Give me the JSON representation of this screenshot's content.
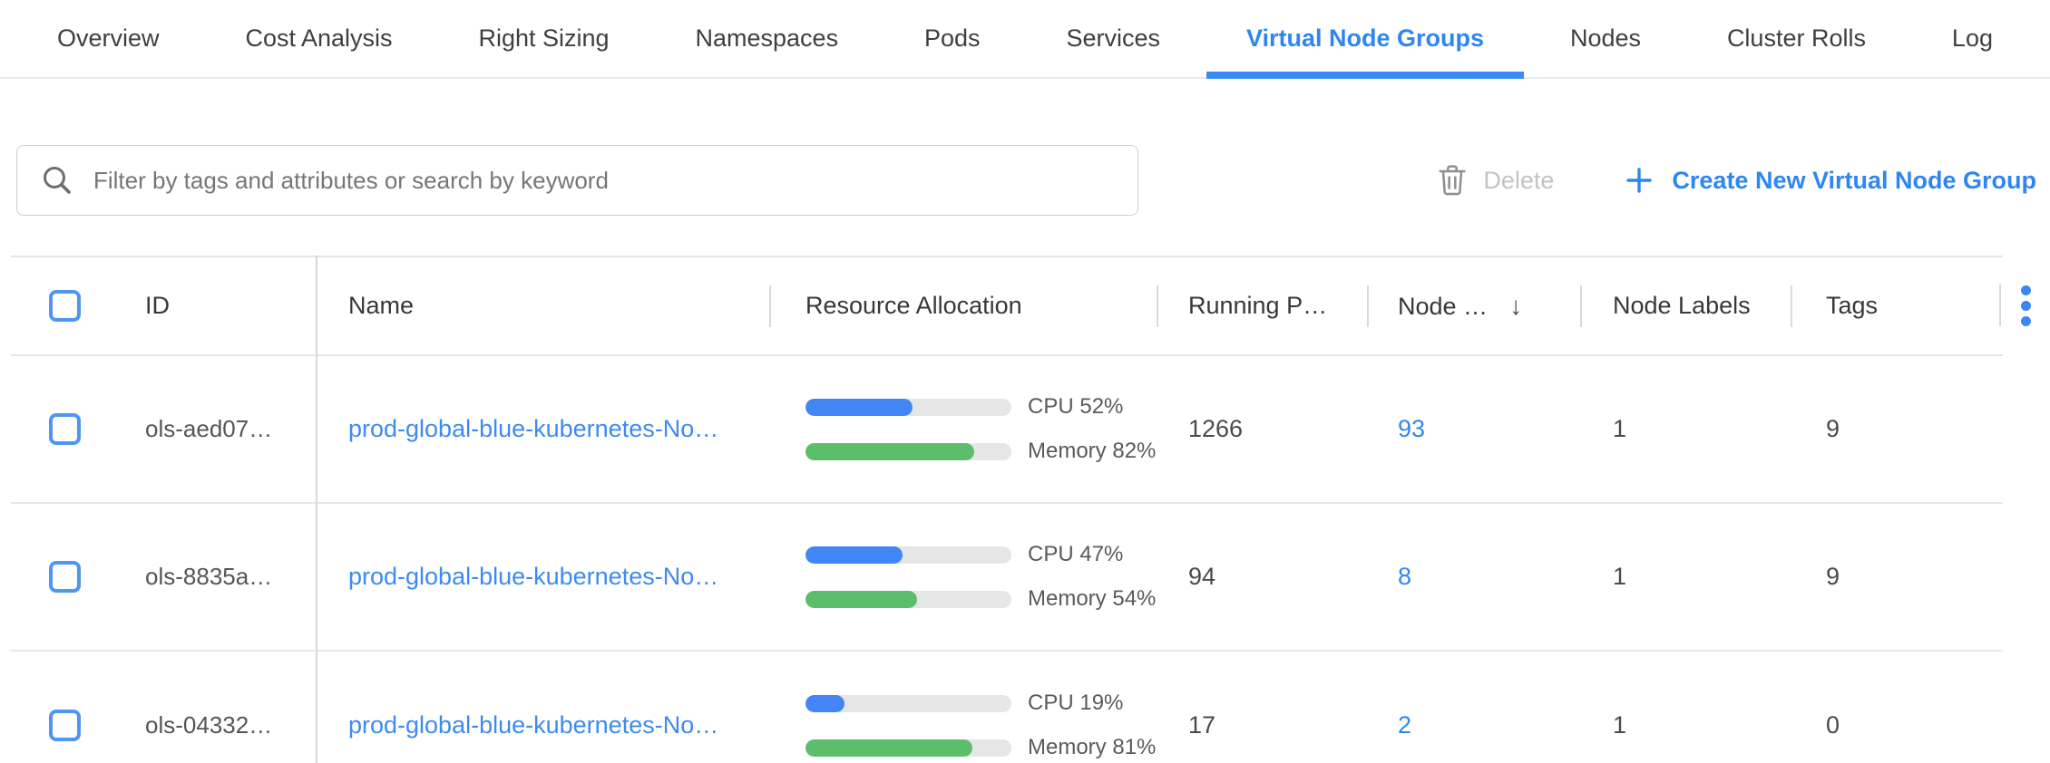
{
  "tabs": [
    {
      "label": "Overview",
      "active": false
    },
    {
      "label": "Cost Analysis",
      "active": false
    },
    {
      "label": "Right Sizing",
      "active": false
    },
    {
      "label": "Namespaces",
      "active": false
    },
    {
      "label": "Pods",
      "active": false
    },
    {
      "label": "Services",
      "active": false
    },
    {
      "label": "Virtual Node Groups",
      "active": true
    },
    {
      "label": "Nodes",
      "active": false
    },
    {
      "label": "Cluster Rolls",
      "active": false
    },
    {
      "label": "Log",
      "active": false
    }
  ],
  "toolbar": {
    "search_placeholder": "Filter by tags and attributes or search by keyword",
    "search_value": "",
    "delete_label": "Delete",
    "delete_enabled": false,
    "create_label": "Create New Virtual Node Group",
    "icons": {
      "search": "magnifier-icon",
      "delete": "trash-icon",
      "create": "plus-icon"
    }
  },
  "table": {
    "columns": {
      "id": "ID",
      "name": "Name",
      "resource": "Resource Allocation",
      "running_pods": "Running P…",
      "nodes": "Node …",
      "node_labels": "Node Labels",
      "tags": "Tags"
    },
    "sort": {
      "column": "Node …",
      "direction": "desc",
      "icon": "↓"
    },
    "menu_icon": "kebab-menu-icon",
    "rows": [
      {
        "id": "ols-aed07…",
        "name": "prod-global-blue-kubernetes-No…",
        "cpu_pct": 52,
        "cpu_label": "CPU 52%",
        "memory_pct": 82,
        "memory_label": "Memory 82%",
        "running_pods": "1266",
        "nodes": "93",
        "node_labels": "1",
        "tags": "9"
      },
      {
        "id": "ols-8835a…",
        "name": "prod-global-blue-kubernetes-No…",
        "cpu_pct": 47,
        "cpu_label": "CPU 47%",
        "memory_pct": 54,
        "memory_label": "Memory 54%",
        "running_pods": "94",
        "nodes": "8",
        "node_labels": "1",
        "tags": "9"
      },
      {
        "id": "ols-04332…",
        "name": "prod-global-blue-kubernetes-No…",
        "cpu_pct": 19,
        "cpu_label": "CPU 19%",
        "memory_pct": 81,
        "memory_label": "Memory 81%",
        "running_pods": "17",
        "nodes": "2",
        "node_labels": "1",
        "tags": "0"
      }
    ]
  },
  "colors": {
    "accent_blue": "#2e87f0",
    "link_blue": "#3d8af2",
    "tab_underline": "#3b8cf2",
    "bar_cpu_blue": "#4285f4",
    "bar_memory_green": "#5cbe6b",
    "bar_track_gray": "#e6e6e6",
    "checkbox_blue": "#4f95f3",
    "disabled_gray": "#c3c3c3",
    "divider_gray": "#e8e8e8"
  }
}
